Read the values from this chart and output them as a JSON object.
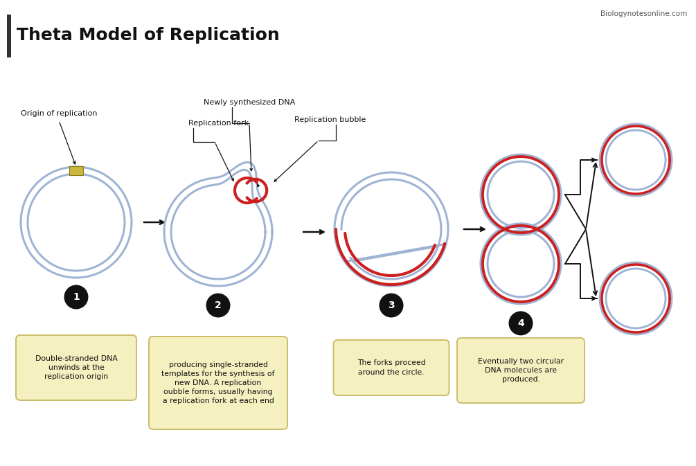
{
  "title": "Theta Model of Replication",
  "watermark": "Biologynotesonline.com",
  "background_color": "#ffffff",
  "title_bar_color": "#333333",
  "circle_color": "#9fb4d4",
  "circle_lw": 2.2,
  "red_color": "#cc2020",
  "arrow_color": "#111111",
  "box_fill": "#f5f0c0",
  "box_edge": "#c8b860",
  "step_labels": [
    "Double-stranded DNA\nunwinds at the\nreplication origin",
    "producing single-stranded\ntemplates for the synthesis of\nnew DNA. A replication\noubble forms, usually having\na replication fork at each end",
    "The forks proceed\naround the circle.",
    "Eventually two circular\nDNA molecules are\nproduced."
  ],
  "step_numbers": [
    "1",
    "2",
    "3",
    "4"
  ]
}
